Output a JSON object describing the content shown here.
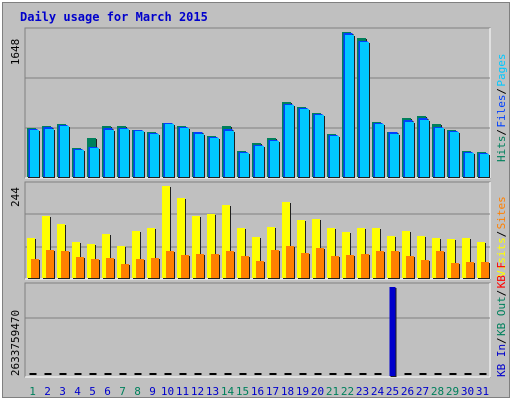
{
  "title": "Daily usage for March 2015",
  "colors": {
    "title": "#0000cc",
    "hits": "#00805c",
    "files": "#0040ff",
    "pages": "#00c8ff",
    "visits": "#ffff00",
    "sites": "#ff8000",
    "kbin": "#0000cc",
    "kbout": "#00805c",
    "kbf": "#ff0000",
    "weekend": "#00805c",
    "weekday": "#0000cc",
    "gridline": "#808080"
  },
  "chart_data": {
    "type": "bar",
    "categories": [
      "1",
      "2",
      "3",
      "4",
      "5",
      "6",
      "7",
      "8",
      "9",
      "10",
      "11",
      "12",
      "13",
      "14",
      "15",
      "16",
      "17",
      "18",
      "19",
      "20",
      "21",
      "22",
      "23",
      "24",
      "25",
      "26",
      "27",
      "28",
      "29",
      "30",
      "31"
    ],
    "weekend_days": [
      "1",
      "7",
      "8",
      "14",
      "15",
      "21",
      "22",
      "28",
      "29"
    ],
    "panels": [
      {
        "name": "top",
        "max_label": "1648",
        "legend": [
          {
            "text": "Hits",
            "color": "hits"
          },
          {
            "text": "Files",
            "color": "files"
          },
          {
            "text": "Pages",
            "color": "pages"
          }
        ],
        "series": [
          {
            "name": "Hits",
            "color": "hits",
            "values": [
              512,
              540,
              560,
              310,
              410,
              535,
              535,
              500,
              480,
              570,
              540,
              480,
              430,
              540,
              270,
              360,
              410,
              790,
              740,
              680,
              450,
              1530,
              1470,
              580,
              480,
              620,
              640,
              560,
              500,
              270,
              260
            ]
          },
          {
            "name": "Files",
            "color": "files",
            "values": [
              505,
              525,
              545,
              300,
              320,
              515,
              520,
              495,
              465,
              565,
              530,
              470,
              425,
              505,
              265,
              340,
              395,
              775,
              730,
              665,
              440,
              1520,
              1440,
              570,
              470,
              600,
              625,
              530,
              490,
              260,
              250
            ]
          },
          {
            "name": "Pages",
            "color": "pages",
            "values": [
              495,
              510,
              535,
              290,
              310,
              500,
              505,
              485,
              455,
              555,
              520,
              455,
              410,
              490,
              255,
              330,
              380,
              760,
              715,
              650,
              430,
              1500,
              1420,
              555,
              455,
              580,
              605,
              520,
              480,
              250,
              240
            ]
          }
        ]
      },
      {
        "name": "middle",
        "max_label": "244",
        "legend": [
          {
            "text": "Visits",
            "color": "visits"
          },
          {
            "text": "Sites",
            "color": "sites"
          }
        ],
        "series": [
          {
            "name": "Visits",
            "color": "visits",
            "values": [
              101,
              155,
              135,
              90,
              85,
              110,
              80,
              118,
              125,
              230,
              200,
              155,
              160,
              182,
              125,
              102,
              128,
              190,
              145,
              147,
              125,
              116,
              125,
              125,
              105,
              117,
              106,
              101,
              98,
              101,
              90
            ]
          },
          {
            "name": "Sites",
            "color": "sites",
            "values": [
              48,
              70,
              67,
              52,
              48,
              50,
              35,
              48,
              50,
              68,
              57,
              60,
              60,
              67,
              55,
              42,
              70,
              80,
              63,
              75,
              55,
              57,
              60,
              67,
              68,
              56,
              45,
              67,
              37,
              40,
              40
            ]
          }
        ]
      },
      {
        "name": "bottom",
        "max_label": "2633759470",
        "legend": [
          {
            "text": "KB In",
            "color": "kbin"
          },
          {
            "text": "KB Out",
            "color": "kbout"
          },
          {
            "text": "KB F",
            "color": "kbf"
          }
        ],
        "series": [
          {
            "name": "KB In",
            "color": "kbin",
            "values": [
              0,
              0,
              0,
              0,
              0,
              0,
              0,
              0,
              0,
              0,
              0,
              0,
              0,
              0,
              0,
              0,
              0,
              0,
              0,
              0,
              0,
              0,
              0,
              0,
              2633759470,
              0,
              0,
              0,
              0,
              0,
              0
            ]
          }
        ]
      }
    ]
  }
}
